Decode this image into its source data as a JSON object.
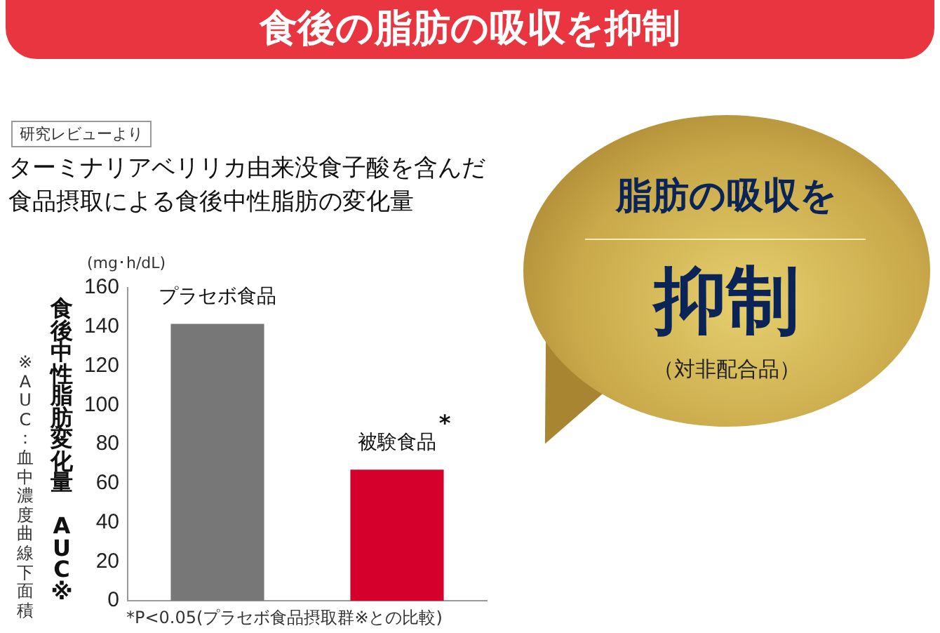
{
  "chart_data": {
    "type": "bar",
    "title": "食後の脂肪の吸収を抑制",
    "subtitle": "ターミナリアベリリカ由来没食子酸を含んだ食品摂取による食後中性脂肪の変化量",
    "ylabel": "食後中性脂肪変化量 AUC※",
    "categories": [
      "プラセボ食品",
      "被験食品"
    ],
    "colors": [
      "#777777",
      "#d5002b"
    ],
    "values": [
      141.5,
      67
    ],
    "ylim": [
      0,
      160
    ],
    "yticks": [
      0,
      20,
      40,
      60,
      80,
      100,
      120,
      140,
      160
    ],
    "grid": false,
    "legend": false,
    "annotations": [
      "研究レビューより",
      "(mg･h/dL)",
      "※AUC：血中濃度曲線下面積",
      "*P<0.05(プラセボ食品摂取群※との比較)",
      "脂肪の吸収を",
      "抑制",
      "（対非配合品）",
      {
        "text": "*",
        "x": "被験食品",
        "y": 67
      }
    ]
  }
}
